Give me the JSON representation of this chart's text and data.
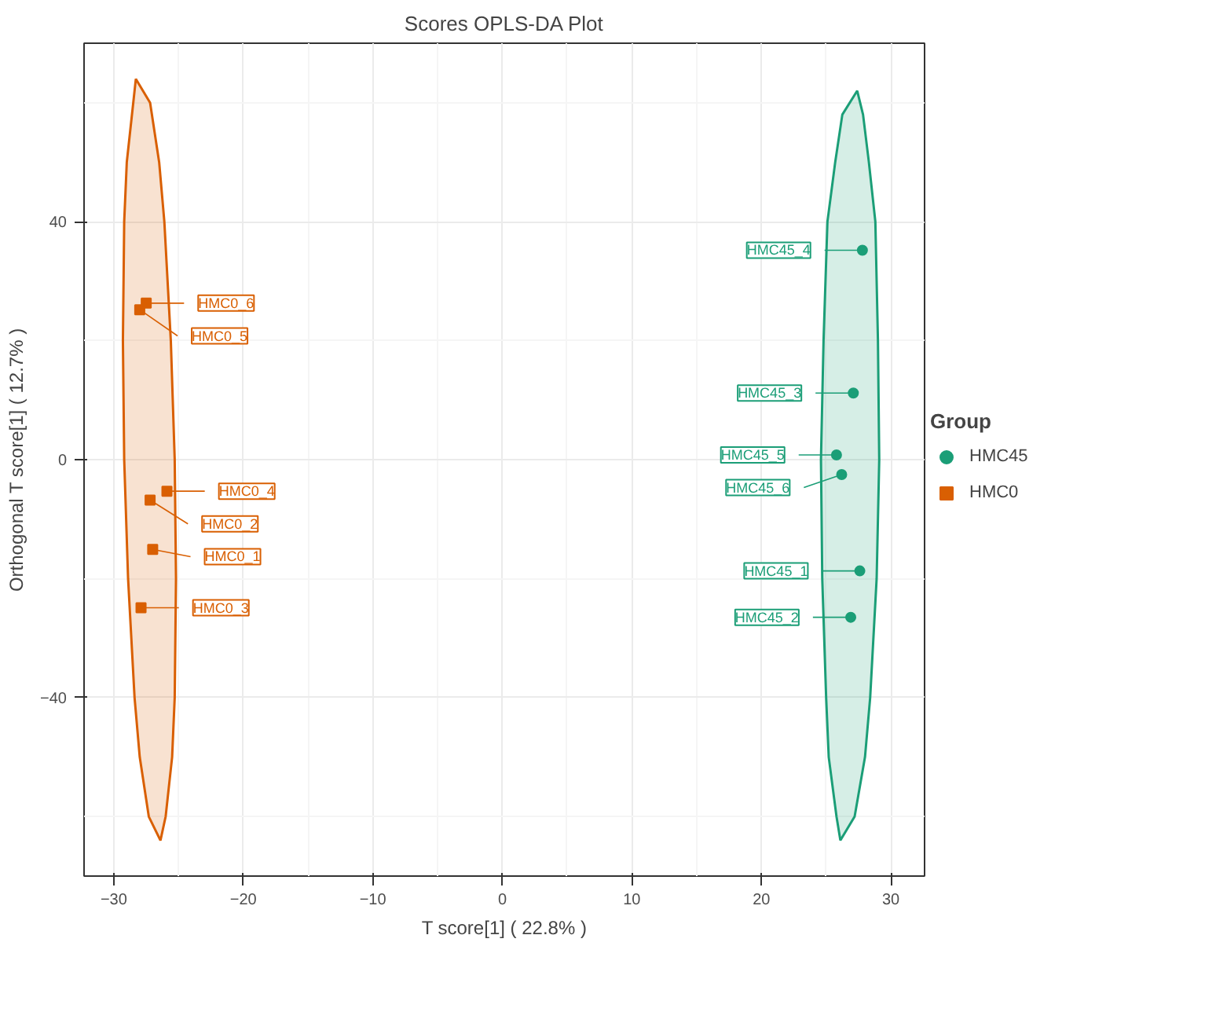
{
  "chart_data": {
    "type": "scatter",
    "title": "Scores OPLS-DA Plot",
    "xlabel": "T score[1] ( 22.8% )",
    "ylabel": "Orthogonal T score[1] ( 12.7% )",
    "legend_title": "Group",
    "legend": "right",
    "grid": true,
    "xlim": [
      -32.3,
      32.6
    ],
    "ylim": [
      -70,
      70
    ],
    "xticks": [
      -30,
      -20,
      -10,
      0,
      10,
      20,
      30
    ],
    "yticks": [
      -40,
      0,
      40
    ],
    "series": [
      {
        "name": "HMC45",
        "color": "#1b9e77",
        "marker": "circle",
        "x": [
          27.6,
          26.9,
          27.1,
          27.8,
          25.8,
          26.2
        ],
        "values": [
          -18.7,
          -26.5,
          11.2,
          35.2,
          0.8,
          -2.5
        ],
        "value_labels": [
          "HMC45_1",
          "HMC45_2",
          "HMC45_3",
          "HMC45_4",
          "HMC45_5",
          "HMC45_6"
        ]
      },
      {
        "name": "HMC0",
        "color": "#d95f02",
        "marker": "square",
        "x": [
          -27.0,
          -27.2,
          -27.9,
          -25.9,
          -28.0,
          -27.5
        ],
        "values": [
          -15.1,
          -6.8,
          -24.9,
          -5.3,
          25.2,
          26.3
        ],
        "value_labels": [
          "HMC0_1",
          "HMC0_2",
          "HMC0_3",
          "HMC0_4",
          "HMC0_5",
          "HMC0_6"
        ]
      },
      {
        "type": "area",
        "color": "#1b9e77",
        "x": [
          27.4,
          27.85,
          28.3,
          28.8,
          29.0,
          29.1,
          28.9,
          28.4,
          28.0,
          27.2,
          26.1,
          25.8,
          25.2,
          25.0,
          24.7,
          24.6,
          24.8,
          25.1,
          25.7,
          26.25,
          27.4
        ],
        "values": [
          62,
          58,
          50,
          40,
          20,
          0,
          -20,
          -40,
          -50,
          -60,
          -64,
          -60,
          -50,
          -40,
          -20,
          0,
          20,
          40,
          50,
          58,
          62
        ]
      },
      {
        "type": "area",
        "color": "#d95f02",
        "x": [
          -28.3,
          -27.2,
          -26.5,
          -26.1,
          -25.6,
          -25.3,
          -25.2,
          -25.3,
          -25.5,
          -26.0,
          -26.4,
          -27.3,
          -28.0,
          -28.4,
          -28.9,
          -29.2,
          -29.3,
          -29.2,
          -29.0,
          -28.5,
          -28.3
        ],
        "values": [
          64,
          60,
          50,
          40,
          20,
          0,
          -20,
          -40,
          -50,
          -60,
          -64,
          -60,
          -50,
          -40,
          -20,
          0,
          20,
          40,
          50,
          60,
          64
        ]
      }
    ]
  }
}
